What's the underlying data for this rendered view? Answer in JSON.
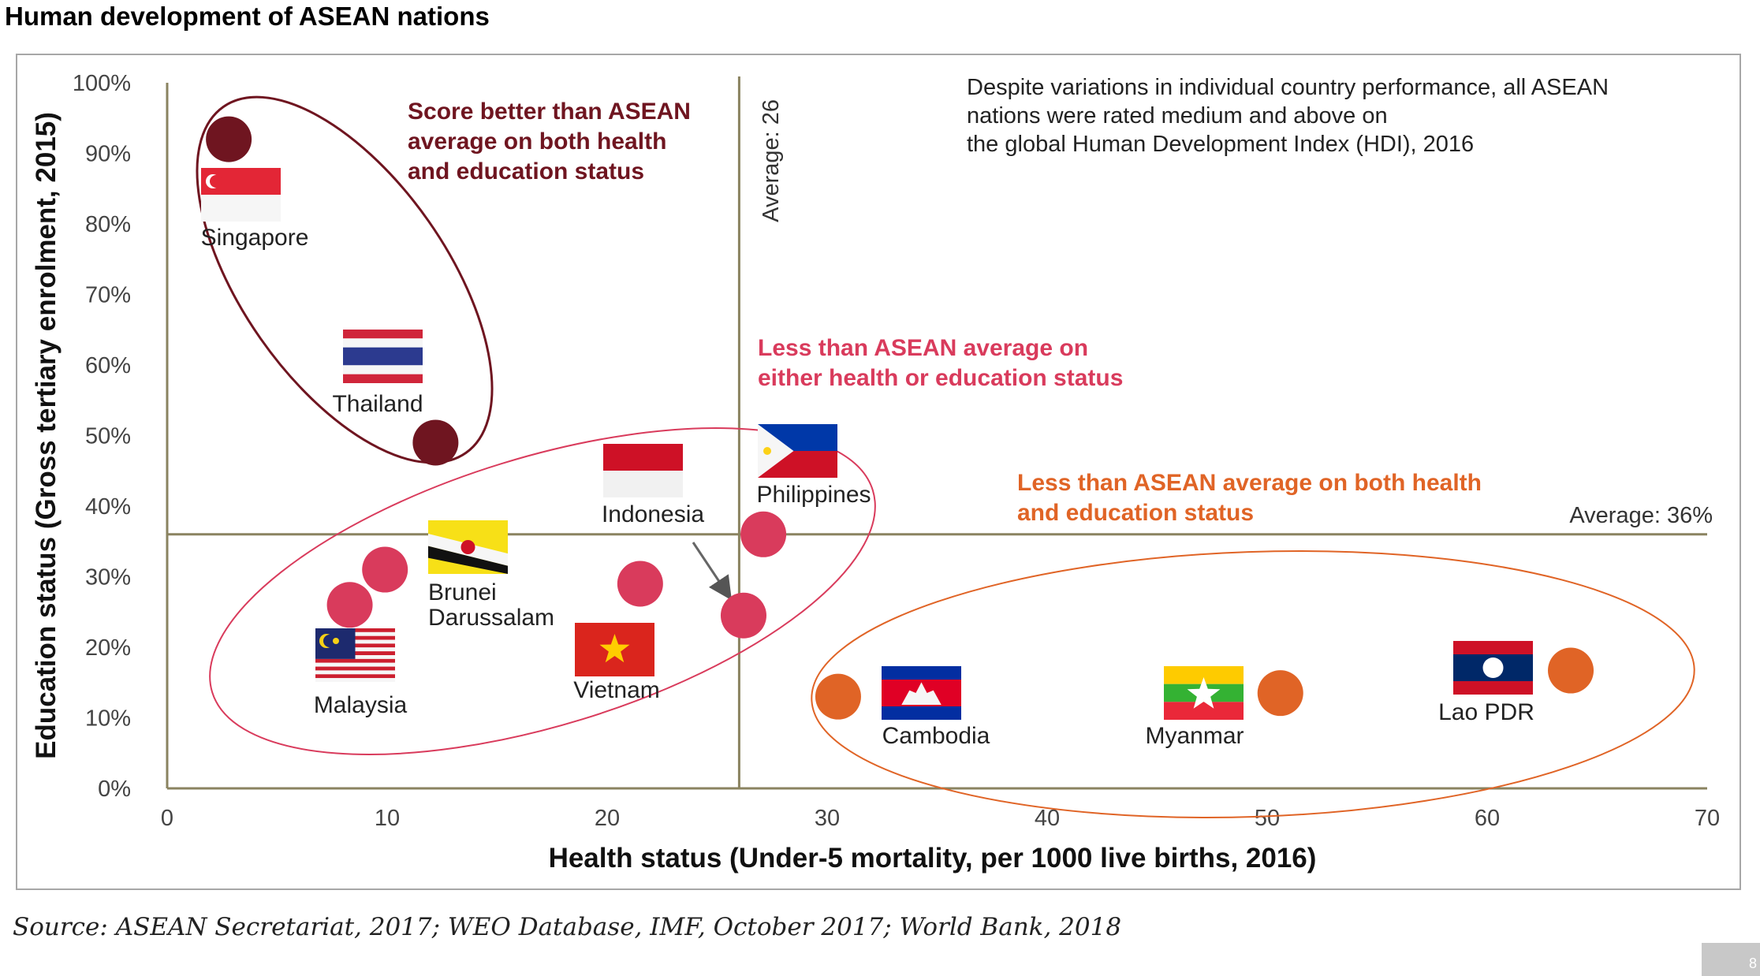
{
  "title": "Human development of ASEAN nations",
  "source": "Source: ASEAN Secretariat, 2017; WEO Database, IMF, October 2017; World Bank, 2018",
  "page_number": "8",
  "colors": {
    "axis": "#8a8360",
    "dark_red": "#6f1520",
    "pink": "#d93b5c",
    "orange": "#e06426",
    "frame": "#a7a7a7"
  },
  "chart_data": {
    "type": "scatter",
    "title": "Human development of ASEAN nations",
    "xlabel": "Health status (Under-5 mortality, per 1000 live births, 2016)",
    "ylabel": "Education status (Gross tertiary enrolment, 2015)",
    "xlim": [
      0,
      70
    ],
    "ylim": [
      0,
      100
    ],
    "x_ticks": [
      "0",
      "10",
      "20",
      "30",
      "40",
      "50",
      "60",
      "70"
    ],
    "y_ticks": [
      "0%",
      "10%",
      "20%",
      "30%",
      "40%",
      "50%",
      "60%",
      "70%",
      "80%",
      "90%",
      "100%"
    ],
    "grid": false,
    "reference_lines": [
      {
        "axis": "x",
        "value": 26,
        "label": "Average: 26"
      },
      {
        "axis": "y",
        "value": 36,
        "label": "Average: 36%"
      }
    ],
    "note": "Despite variations in individual country performance, all ASEAN nations were rated medium and above on the global Human Development Index (HDI), 2016",
    "groups": [
      {
        "label": "Score better than ASEAN average on both health and education status",
        "color": "#6f1520"
      },
      {
        "label": "Less than ASEAN average on either health or education status",
        "color": "#d93b5c"
      },
      {
        "label": "Less than ASEAN average on both health and education status",
        "color": "#e06426"
      }
    ],
    "points": [
      {
        "country": "Singapore",
        "x": 2.8,
        "y": 92,
        "group": 0,
        "flag": "singapore-flag"
      },
      {
        "country": "Thailand",
        "x": 12.2,
        "y": 49,
        "group": 0,
        "flag": "thailand-flag"
      },
      {
        "country": "Malaysia",
        "x": 8.3,
        "y": 26,
        "group": 1,
        "flag": "malaysia-flag"
      },
      {
        "country": "Brunei Darussalam",
        "x": 9.9,
        "y": 31,
        "group": 1,
        "flag": "brunei-flag"
      },
      {
        "country": "Vietnam",
        "x": 21.5,
        "y": 29,
        "group": 1,
        "flag": "vietnam-flag"
      },
      {
        "country": "Indonesia",
        "x": 26.2,
        "y": 24.5,
        "group": 1,
        "flag": "indonesia-flag"
      },
      {
        "country": "Philippines",
        "x": 27.1,
        "y": 36,
        "group": 1,
        "flag": "philippines-flag"
      },
      {
        "country": "Cambodia",
        "x": 30.5,
        "y": 13,
        "group": 2,
        "flag": "cambodia-flag"
      },
      {
        "country": "Myanmar",
        "x": 50.6,
        "y": 13.5,
        "group": 2,
        "flag": "myanmar-flag"
      },
      {
        "country": "Lao PDR",
        "x": 63.8,
        "y": 16.7,
        "group": 2,
        "flag": "laos-flag"
      }
    ]
  }
}
